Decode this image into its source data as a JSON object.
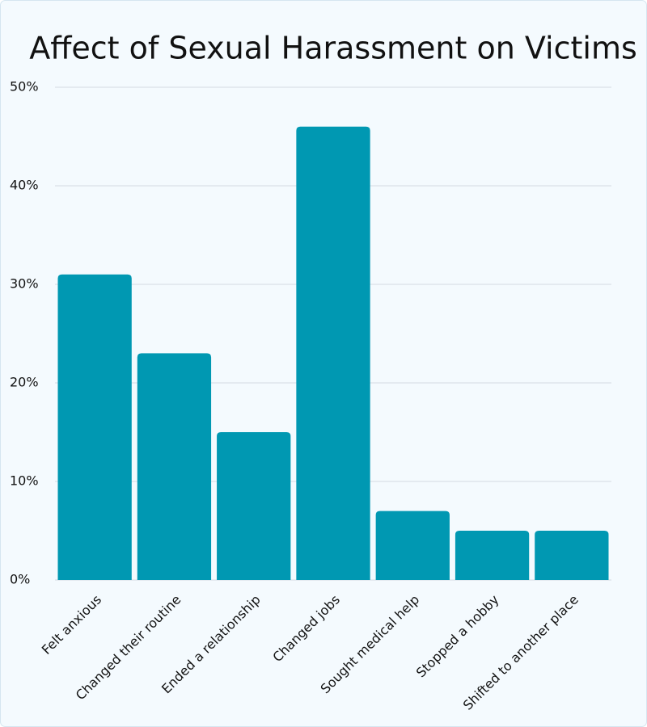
{
  "chart_data": {
    "type": "bar",
    "title": "Affect of Sexual Harassment on Victims",
    "categories": [
      "Felt anxious",
      "Changed their routine",
      "Ended a relationship",
      "Changed jobs",
      "Sought medical help",
      "Stopped a hobby",
      "Shifted to another place"
    ],
    "values": [
      31,
      23,
      15,
      46,
      7,
      5,
      5
    ],
    "color": "#0098b2",
    "ylim": [
      0,
      50
    ],
    "yticks": [
      {
        "value": 0,
        "label": "0%"
      },
      {
        "value": 10,
        "label": "10%"
      },
      {
        "value": 20,
        "label": "20%"
      },
      {
        "value": 30,
        "label": "30%"
      },
      {
        "value": 40,
        "label": "40%"
      },
      {
        "value": 50,
        "label": "50%"
      }
    ],
    "grid": true
  }
}
